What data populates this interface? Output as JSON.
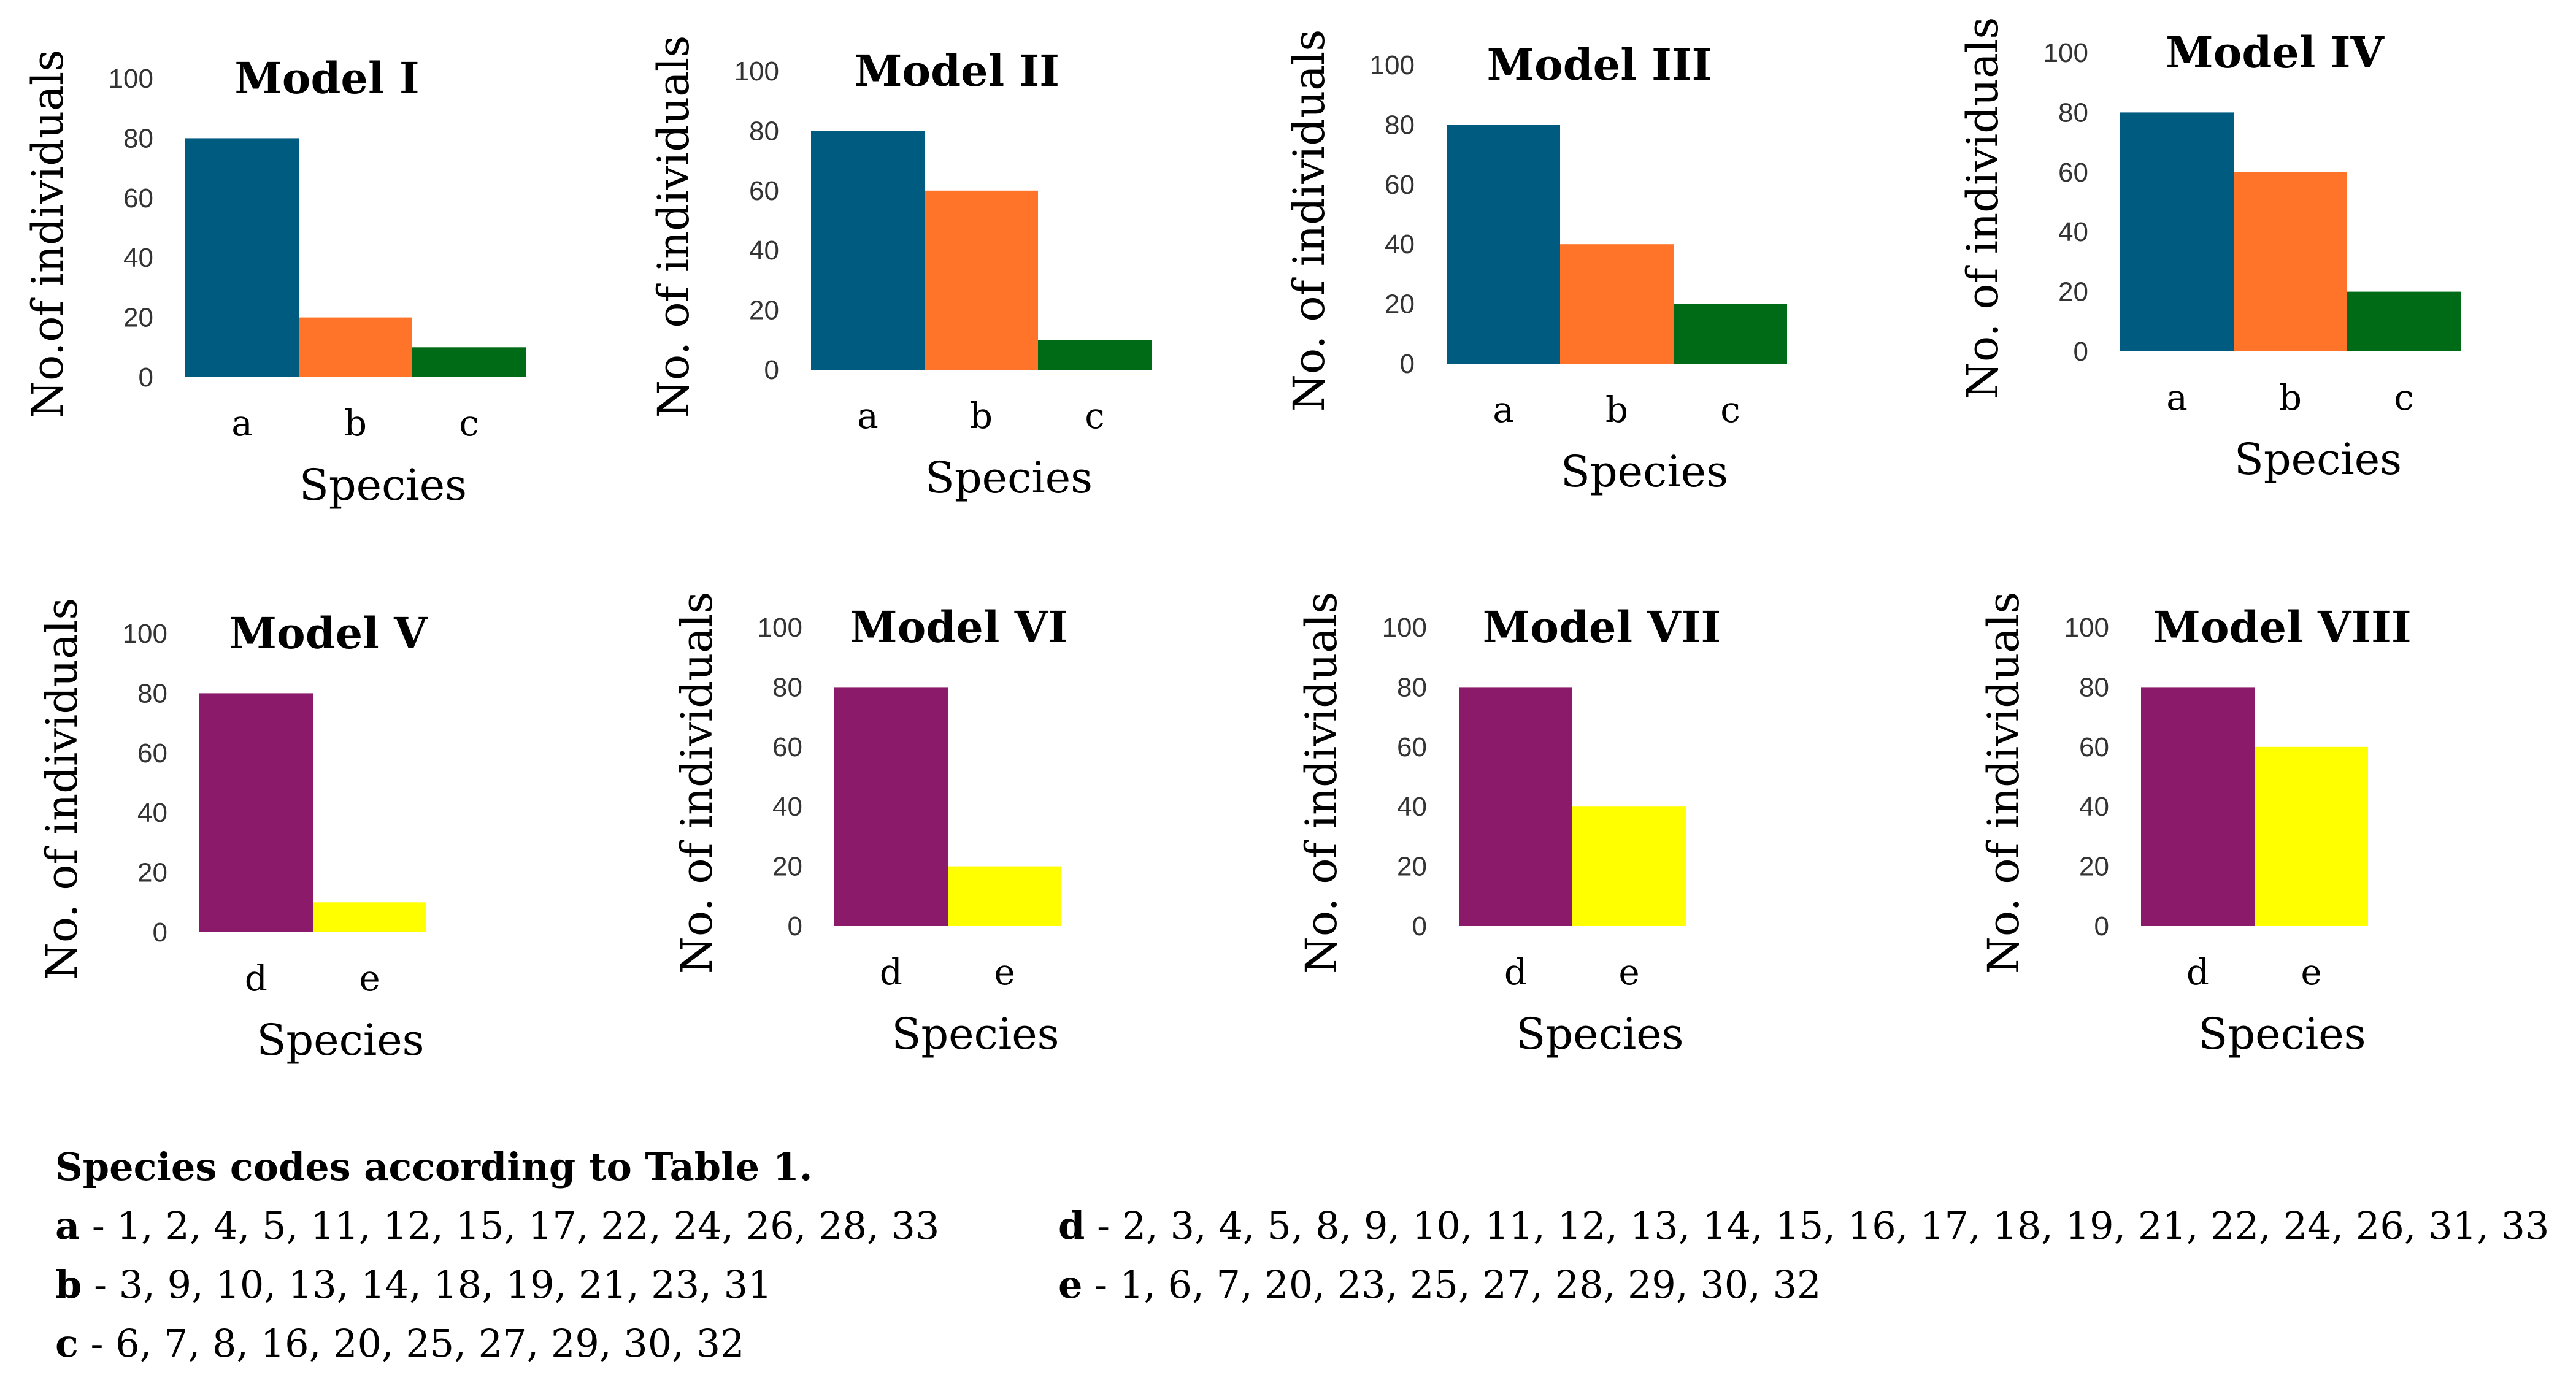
{
  "colors": {
    "a": "#005b80",
    "b": "#ff7428",
    "c": "#006b16",
    "d": "#8c1a6a",
    "e": "#ffff00"
  },
  "chart_data": [
    {
      "type": "bar",
      "title": "Model I",
      "ylabel": "No.of individuals",
      "xlabel": "Species",
      "categories": [
        "a",
        "b",
        "c"
      ],
      "values": [
        80,
        20,
        10
      ],
      "ylim": [
        0,
        100
      ],
      "yticks": [
        0,
        20,
        40,
        60,
        80,
        100
      ]
    },
    {
      "type": "bar",
      "title": "Model II",
      "ylabel": "No. of individuals",
      "xlabel": "Species",
      "categories": [
        "a",
        "b",
        "c"
      ],
      "values": [
        80,
        60,
        10
      ],
      "ylim": [
        0,
        100
      ],
      "yticks": [
        0,
        20,
        40,
        60,
        80,
        100
      ]
    },
    {
      "type": "bar",
      "title": "Model III",
      "ylabel": "No. of individuals",
      "xlabel": "Species",
      "categories": [
        "a",
        "b",
        "c"
      ],
      "values": [
        80,
        40,
        20
      ],
      "ylim": [
        0,
        100
      ],
      "yticks": [
        0,
        20,
        40,
        60,
        80,
        100
      ]
    },
    {
      "type": "bar",
      "title": "Model IV",
      "ylabel": "No. of individuals",
      "xlabel": "Species",
      "categories": [
        "a",
        "b",
        "c"
      ],
      "values": [
        80,
        60,
        20
      ],
      "ylim": [
        0,
        100
      ],
      "yticks": [
        0,
        20,
        40,
        60,
        80,
        100
      ]
    },
    {
      "type": "bar",
      "title": "Model V",
      "ylabel": "No. of individuals",
      "xlabel": "Species",
      "categories": [
        "d",
        "e"
      ],
      "values": [
        80,
        10
      ],
      "ylim": [
        0,
        100
      ],
      "yticks": [
        0,
        20,
        40,
        60,
        80,
        100
      ]
    },
    {
      "type": "bar",
      "title": "Model VI",
      "ylabel": "No. of individuals",
      "xlabel": "Species",
      "categories": [
        "d",
        "e"
      ],
      "values": [
        80,
        20
      ],
      "ylim": [
        0,
        100
      ],
      "yticks": [
        0,
        20,
        40,
        60,
        80,
        100
      ]
    },
    {
      "type": "bar",
      "title": "Model VII",
      "ylabel": "No. of individuals",
      "xlabel": "Species",
      "categories": [
        "d",
        "e"
      ],
      "values": [
        80,
        40
      ],
      "ylim": [
        0,
        100
      ],
      "yticks": [
        0,
        20,
        40,
        60,
        80,
        100
      ]
    },
    {
      "type": "bar",
      "title": "Model VIII",
      "ylabel": "No. of individuals",
      "xlabel": "Species",
      "categories": [
        "d",
        "e"
      ],
      "values": [
        80,
        60
      ],
      "ylim": [
        0,
        100
      ],
      "yticks": [
        0,
        20,
        40,
        60,
        80,
        100
      ]
    }
  ],
  "legend": {
    "title": "Species codes according to Table 1.",
    "items": [
      {
        "code": "a",
        "text": " - 1, 2, 4, 5, 11, 12, 15, 17, 22, 24, 26, 28, 33"
      },
      {
        "code": "b",
        "text": " - 3, 9, 10, 13, 14, 18, 19, 21, 23, 31"
      },
      {
        "code": "c",
        "text": " - 6, 7, 8, 16, 20, 25, 27, 29, 30, 32"
      },
      {
        "code": "d",
        "text": " - 2, 3, 4, 5, 8, 9, 10, 11, 12, 13, 14, 15, 16, 17, 18, 19, 21, 22, 24, 26, 31, 33"
      },
      {
        "code": "e",
        "text": " - 1, 6, 7, 20, 23, 25, 27, 28, 29, 30, 32"
      }
    ]
  }
}
